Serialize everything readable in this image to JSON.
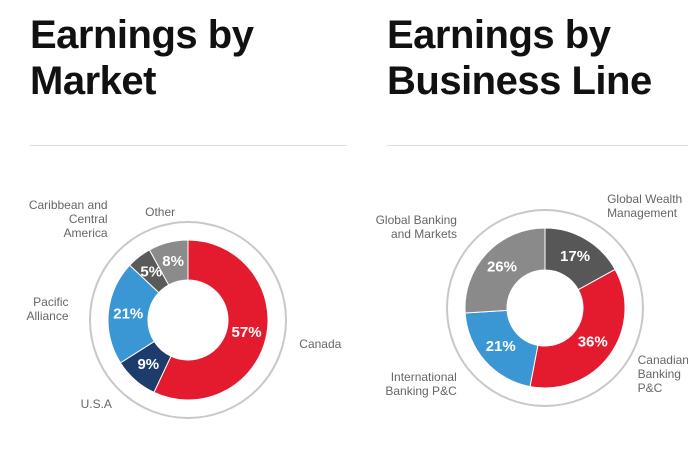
{
  "chart_data": [
    {
      "type": "donut",
      "title": "Earnings by Market",
      "categories": [
        "Canada",
        "U.S.A",
        "Pacific Alliance",
        "Caribbean and Central America",
        "Other"
      ],
      "values": [
        57,
        9,
        21,
        5,
        8
      ],
      "value_labels": [
        "57%",
        "9%",
        "21%",
        "5%",
        "8%"
      ],
      "colors": [
        "#e41b2e",
        "#1e3c6b",
        "#3b97d3",
        "#5a5a5a",
        "#8b8b8b"
      ]
    },
    {
      "type": "donut",
      "title": "Earnings by Business Line",
      "categories": [
        "Global Wealth Management",
        "Canadian Banking P&C",
        "International Banking P&C",
        "Global Banking and Markets"
      ],
      "values": [
        17,
        36,
        21,
        26
      ],
      "value_labels": [
        "17%",
        "36%",
        "21%",
        "26%"
      ],
      "colors": [
        "#575757",
        "#e41b2e",
        "#3b97d3",
        "#8a8a8a"
      ]
    }
  ]
}
